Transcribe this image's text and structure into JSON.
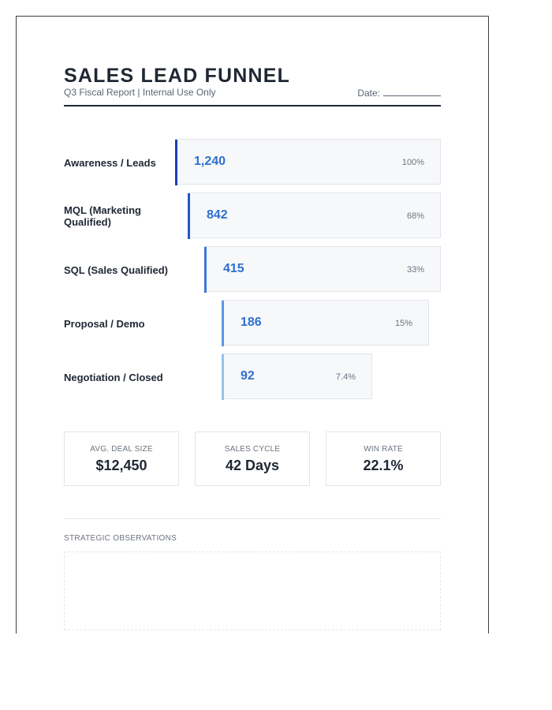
{
  "header": {
    "title": "SALES LEAD FUNNEL",
    "subtitle": "Q3 Fiscal Report | Internal Use Only",
    "date_label": "Date:"
  },
  "funnel": [
    {
      "label": "Awareness / Leads",
      "count": "1,240",
      "percent": "100%",
      "fraction": 1.0,
      "accent": "#1d3fb0"
    },
    {
      "label": "MQL (Marketing Qualified)",
      "count": "842",
      "percent": "68%",
      "fraction": 0.68,
      "accent": "#2456c7"
    },
    {
      "label": "SQL (Sales Qualified)",
      "count": "415",
      "percent": "33%",
      "fraction": 0.33,
      "accent": "#3b78d6"
    },
    {
      "label": "Proposal / Demo",
      "count": "186",
      "percent": "15%",
      "fraction": 0.15,
      "accent": "#5b98e0"
    },
    {
      "label": "Negotiation / Closed",
      "count": "92",
      "percent": "7.4%",
      "fraction": 0.074,
      "accent": "#93c2ee"
    }
  ],
  "kpis": [
    {
      "label": "AVG. DEAL SIZE",
      "value": "$12,450"
    },
    {
      "label": "SALES CYCLE",
      "value": "42 Days"
    },
    {
      "label": "WIN RATE",
      "value": "22.1%"
    }
  ],
  "observations": {
    "label": "STRATEGIC OBSERVATIONS"
  }
}
